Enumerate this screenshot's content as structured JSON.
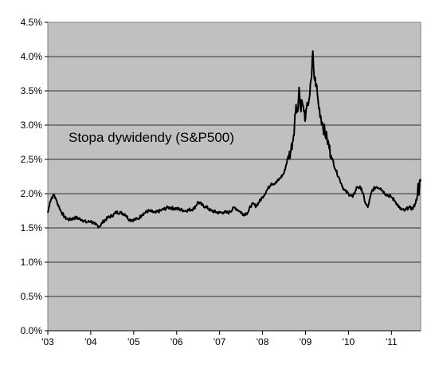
{
  "chart_data": {
    "type": "line",
    "title": "Stopa dywidendy (S&P500)",
    "xlabel": "",
    "ylabel": "",
    "x_tick_labels": [
      "'03",
      "'04",
      "'05",
      "'06",
      "'07",
      "'08",
      "'09",
      "'10",
      "'11"
    ],
    "x_tick_years": [
      2003,
      2004,
      2005,
      2006,
      2007,
      2008,
      2009,
      2010,
      2011
    ],
    "y_tick_labels": [
      "0.0%",
      "0.5%",
      "1.0%",
      "1.5%",
      "2.0%",
      "2.5%",
      "3.0%",
      "3.5%",
      "4.0%",
      "4.5%"
    ],
    "y_tick_values": [
      0.0,
      0.5,
      1.0,
      1.5,
      2.0,
      2.5,
      3.0,
      3.5,
      4.0,
      4.5
    ],
    "xlim": [
      2003.0,
      2011.68
    ],
    "ylim": [
      0.0,
      4.5
    ],
    "grid": "horizontal",
    "plot_background": "#c0c0c0",
    "line_color": "#000000",
    "series": [
      {
        "x": [
          2003.0,
          2003.05,
          2003.1,
          2003.15,
          2003.2,
          2003.3,
          2003.4,
          2003.5,
          2003.65,
          2003.8,
          2003.9,
          2004.0,
          2004.1,
          2004.2,
          2004.3,
          2004.4,
          2004.5,
          2004.6,
          2004.7,
          2004.8,
          2004.9,
          2005.0,
          2005.1,
          2005.2,
          2005.35,
          2005.5,
          2005.65,
          2005.8,
          2006.0,
          2006.2,
          2006.4,
          2006.5,
          2006.6,
          2006.7,
          2006.8,
          2007.0,
          2007.1,
          2007.2,
          2007.35,
          2007.45,
          2007.55,
          2007.65,
          2007.75,
          2007.85,
          2008.0,
          2008.1,
          2008.2,
          2008.3,
          2008.4,
          2008.5,
          2008.6,
          2008.65,
          2008.72,
          2008.78,
          2008.82,
          2008.85,
          2008.88,
          2008.92,
          2008.96,
          2009.0,
          2009.05,
          2009.1,
          2009.14,
          2009.17,
          2009.2,
          2009.25,
          2009.3,
          2009.4,
          2009.5,
          2009.6,
          2009.7,
          2009.8,
          2009.9,
          2010.0,
          2010.1,
          2010.2,
          2010.3,
          2010.4,
          2010.45,
          2010.55,
          2010.65,
          2010.75,
          2010.85,
          2011.0,
          2011.1,
          2011.2,
          2011.3,
          2011.4,
          2011.5,
          2011.55,
          2011.6,
          2011.62,
          2011.64,
          2011.66,
          2011.68
        ],
        "y": [
          1.72,
          1.88,
          1.95,
          1.98,
          1.9,
          1.75,
          1.65,
          1.62,
          1.65,
          1.62,
          1.58,
          1.6,
          1.55,
          1.52,
          1.6,
          1.65,
          1.68,
          1.73,
          1.72,
          1.7,
          1.62,
          1.62,
          1.63,
          1.7,
          1.75,
          1.72,
          1.76,
          1.8,
          1.78,
          1.75,
          1.78,
          1.88,
          1.83,
          1.8,
          1.75,
          1.72,
          1.73,
          1.72,
          1.8,
          1.75,
          1.7,
          1.72,
          1.85,
          1.82,
          1.95,
          2.05,
          2.15,
          2.15,
          2.22,
          2.3,
          2.55,
          2.6,
          2.85,
          3.3,
          3.2,
          3.55,
          3.25,
          3.35,
          3.2,
          3.1,
          3.3,
          3.45,
          3.7,
          4.08,
          3.7,
          3.6,
          3.3,
          3.0,
          2.8,
          2.55,
          2.35,
          2.2,
          2.05,
          2.0,
          1.95,
          2.1,
          2.08,
          1.85,
          1.8,
          2.05,
          2.1,
          2.08,
          2.0,
          1.95,
          1.88,
          1.78,
          1.75,
          1.8,
          1.78,
          1.85,
          1.95,
          2.15,
          1.98,
          2.2,
          2.18
        ]
      }
    ]
  }
}
